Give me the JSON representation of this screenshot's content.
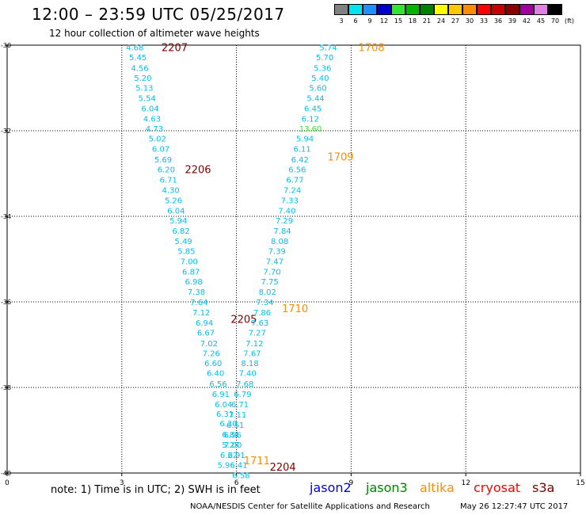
{
  "header": {
    "title": "12:00 – 23:59 UTC 05/25/2017",
    "subtitle": "12 hour collection of altimeter wave heights"
  },
  "colorbar": {
    "unit": "(ft)",
    "swatches": [
      {
        "label": "3",
        "color": "#808080"
      },
      {
        "label": "6",
        "color": "#00e5ee"
      },
      {
        "label": "9",
        "color": "#1e90ff"
      },
      {
        "label": "12",
        "color": "#0000cd"
      },
      {
        "label": "15",
        "color": "#32e632"
      },
      {
        "label": "18",
        "color": "#00b400"
      },
      {
        "label": "21",
        "color": "#008200"
      },
      {
        "label": "24",
        "color": "#ffff00"
      },
      {
        "label": "27",
        "color": "#ffc800"
      },
      {
        "label": "30",
        "color": "#ff8c00"
      },
      {
        "label": "33",
        "color": "#ff0000"
      },
      {
        "label": "36",
        "color": "#c80000"
      },
      {
        "label": "39",
        "color": "#8b0000"
      },
      {
        "label": "42",
        "color": "#a000a0"
      },
      {
        "label": "45",
        "color": "#e080e0"
      },
      {
        "label": "70",
        "color": "#000000"
      }
    ]
  },
  "axes": {
    "x_ticks": [
      "0",
      "3",
      "6",
      "9",
      "12",
      "15"
    ],
    "y_ticks": [
      "-30",
      "-32",
      "-34",
      "-36",
      "-38",
      "-40"
    ]
  },
  "footer": {
    "note": "note: 1) Time is in UTC; 2) SWH is in feet",
    "legend": [
      {
        "name": "jason2",
        "color": "#0000ff"
      },
      {
        "name": "jason3",
        "color": "#008000"
      },
      {
        "name": "altika",
        "color": "#ff8c00"
      },
      {
        "name": "cryosat",
        "color": "#ff0000"
      },
      {
        "name": "s3a",
        "color": "#800000"
      }
    ],
    "credit": "NOAA/NESDIS Center for Satellite Applications and Research",
    "timestamp": "May 26 12:27:47 UTC 2017"
  },
  "chart_data": {
    "type": "scatter",
    "xlim": [
      0,
      15
    ],
    "ylim": [
      -40,
      -30
    ],
    "grid": true,
    "tracks": [
      {
        "satellite": "s3a",
        "color": "#00bfef",
        "time_labels": [
          {
            "text": "2207",
            "x": 4.04,
            "y": -30.05,
            "color": "#800000"
          },
          {
            "text": "2206",
            "x": 4.65,
            "y": -32.9,
            "color": "#800000"
          },
          {
            "text": "2205",
            "x": 5.85,
            "y": -36.4,
            "color": "#800000"
          },
          {
            "text": "2204",
            "x": 6.87,
            "y": -39.85,
            "color": "#800000"
          }
        ],
        "points": [
          {
            "x": 3.11,
            "y": -30.05,
            "swh": "4.68"
          },
          {
            "x": 3.19,
            "y": -30.28,
            "swh": "5.45"
          },
          {
            "x": 3.24,
            "y": -30.53,
            "swh": "4.56"
          },
          {
            "x": 3.32,
            "y": -30.76,
            "swh": "5.20"
          },
          {
            "x": 3.36,
            "y": -30.99,
            "swh": "5.13"
          },
          {
            "x": 3.43,
            "y": -31.23,
            "swh": "5.54"
          },
          {
            "x": 3.51,
            "y": -31.47,
            "swh": "6.04"
          },
          {
            "x": 3.56,
            "y": -31.71,
            "swh": "4.63"
          },
          {
            "x": 3.62,
            "y": -31.94,
            "swh": "4.73"
          },
          {
            "x": 3.7,
            "y": -32.18,
            "swh": "5.02"
          },
          {
            "x": 3.79,
            "y": -32.42,
            "swh": "6.07"
          },
          {
            "x": 3.85,
            "y": -32.67,
            "swh": "5.69"
          },
          {
            "x": 3.93,
            "y": -32.9,
            "swh": "6.20"
          },
          {
            "x": 3.99,
            "y": -33.14,
            "swh": "6.71"
          },
          {
            "x": 4.05,
            "y": -33.38,
            "swh": "4.30"
          },
          {
            "x": 4.12,
            "y": -33.62,
            "swh": "5.26"
          },
          {
            "x": 4.19,
            "y": -33.86,
            "swh": "6.04"
          },
          {
            "x": 4.25,
            "y": -34.09,
            "swh": "5.94"
          },
          {
            "x": 4.32,
            "y": -34.33,
            "swh": "6.82"
          },
          {
            "x": 4.38,
            "y": -34.57,
            "swh": "5.49"
          },
          {
            "x": 4.46,
            "y": -34.81,
            "swh": "5.85"
          },
          {
            "x": 4.53,
            "y": -35.05,
            "swh": "7.00"
          },
          {
            "x": 4.58,
            "y": -35.29,
            "swh": "6.87"
          },
          {
            "x": 4.65,
            "y": -35.52,
            "swh": "6.98"
          },
          {
            "x": 4.72,
            "y": -35.76,
            "swh": "7.38"
          },
          {
            "x": 4.79,
            "y": -36.0,
            "swh": "7.64"
          },
          {
            "x": 4.85,
            "y": -36.24,
            "swh": "7.12"
          },
          {
            "x": 4.93,
            "y": -36.48,
            "swh": "6.94"
          },
          {
            "x": 4.97,
            "y": -36.71,
            "swh": "6.67"
          },
          {
            "x": 5.05,
            "y": -36.96,
            "swh": "7.02"
          },
          {
            "x": 5.11,
            "y": -37.19,
            "swh": "7.26"
          },
          {
            "x": 5.16,
            "y": -37.43,
            "swh": "6.60"
          },
          {
            "x": 5.22,
            "y": -37.66,
            "swh": "6.40"
          },
          {
            "x": 5.29,
            "y": -37.91,
            "swh": "6.56"
          },
          {
            "x": 5.36,
            "y": -38.15,
            "swh": "6.91"
          },
          {
            "x": 5.43,
            "y": -38.39,
            "swh": "6.04"
          },
          {
            "x": 5.47,
            "y": -38.61,
            "swh": "6.31"
          },
          {
            "x": 5.56,
            "y": -38.83,
            "swh": "6.30"
          },
          {
            "x": 5.62,
            "y": -39.09,
            "swh": "6.81"
          },
          {
            "x": 5.68,
            "y": -39.33,
            "swh": "7.00"
          },
          {
            "x": 5.77,
            "y": -39.57,
            "swh": "6.91"
          },
          {
            "x": 5.83,
            "y": -39.81,
            "swh": "6.41"
          },
          {
            "x": 5.89,
            "y": -40.05,
            "swh": "6.58"
          }
        ]
      },
      {
        "satellite": "altika",
        "color": "#00bfef",
        "time_labels": [
          {
            "text": "1708",
            "x": 9.19,
            "y": -30.05,
            "color": "#ff8c00"
          },
          {
            "text": "1709",
            "x": 8.38,
            "y": -32.6,
            "color": "#ff8c00"
          },
          {
            "text": "1710",
            "x": 7.19,
            "y": -36.15,
            "color": "#ff8c00"
          },
          {
            "text": "1711",
            "x": 6.19,
            "y": -39.7,
            "color": "#ff8c00"
          }
        ],
        "points": [
          {
            "x": 8.17,
            "y": -30.05,
            "swh": "5.74"
          },
          {
            "x": 8.08,
            "y": -30.28,
            "swh": "5.70"
          },
          {
            "x": 8.02,
            "y": -30.53,
            "swh": "5.36"
          },
          {
            "x": 7.96,
            "y": -30.76,
            "swh": "5.40"
          },
          {
            "x": 7.9,
            "y": -30.99,
            "swh": "5.60"
          },
          {
            "x": 7.84,
            "y": -31.23,
            "swh": "5.44"
          },
          {
            "x": 7.77,
            "y": -31.47,
            "swh": "6.45"
          },
          {
            "x": 7.7,
            "y": -31.71,
            "swh": "6.12"
          },
          {
            "x": 7.64,
            "y": -31.94,
            "swh": "13.60",
            "color": "#32e632"
          },
          {
            "x": 7.56,
            "y": -32.18,
            "swh": "5.94"
          },
          {
            "x": 7.49,
            "y": -32.42,
            "swh": "6.11"
          },
          {
            "x": 7.43,
            "y": -32.67,
            "swh": "6.42"
          },
          {
            "x": 7.36,
            "y": -32.9,
            "swh": "6.56"
          },
          {
            "x": 7.3,
            "y": -33.14,
            "swh": "6.77"
          },
          {
            "x": 7.23,
            "y": -33.38,
            "swh": "7.24"
          },
          {
            "x": 7.16,
            "y": -33.62,
            "swh": "7.33"
          },
          {
            "x": 7.09,
            "y": -33.86,
            "swh": "7.40"
          },
          {
            "x": 7.02,
            "y": -34.09,
            "swh": "7.29"
          },
          {
            "x": 6.97,
            "y": -34.33,
            "swh": "7.84"
          },
          {
            "x": 6.9,
            "y": -34.57,
            "swh": "8.08"
          },
          {
            "x": 6.83,
            "y": -34.81,
            "swh": "7.39"
          },
          {
            "x": 6.77,
            "y": -35.05,
            "swh": "7.47"
          },
          {
            "x": 6.7,
            "y": -35.29,
            "swh": "7.70"
          },
          {
            "x": 6.64,
            "y": -35.52,
            "swh": "7.75"
          },
          {
            "x": 6.58,
            "y": -35.76,
            "swh": "8.02"
          },
          {
            "x": 6.51,
            "y": -36.0,
            "swh": "7.34"
          },
          {
            "x": 6.44,
            "y": -36.24,
            "swh": "7.86"
          },
          {
            "x": 6.38,
            "y": -36.48,
            "swh": "7.63"
          },
          {
            "x": 6.31,
            "y": -36.71,
            "swh": "7.27"
          },
          {
            "x": 6.24,
            "y": -36.96,
            "swh": "7.12"
          },
          {
            "x": 6.18,
            "y": -37.19,
            "swh": "7.67"
          },
          {
            "x": 6.12,
            "y": -37.43,
            "swh": "8.18"
          },
          {
            "x": 6.06,
            "y": -37.66,
            "swh": "7.40"
          },
          {
            "x": 5.99,
            "y": -37.91,
            "swh": "7.68"
          },
          {
            "x": 5.93,
            "y": -38.15,
            "swh": "6.79"
          },
          {
            "x": 5.86,
            "y": -38.39,
            "swh": "6.71"
          },
          {
            "x": 5.8,
            "y": -38.63,
            "swh": "7.11"
          },
          {
            "x": 5.74,
            "y": -38.87,
            "swh": "6.51"
          },
          {
            "x": 5.67,
            "y": -39.1,
            "swh": "6.96"
          },
          {
            "x": 5.62,
            "y": -39.33,
            "swh": "5.27"
          },
          {
            "x": 5.57,
            "y": -39.57,
            "swh": "6.22"
          },
          {
            "x": 5.5,
            "y": -39.81,
            "swh": "5.96"
          }
        ]
      }
    ]
  }
}
